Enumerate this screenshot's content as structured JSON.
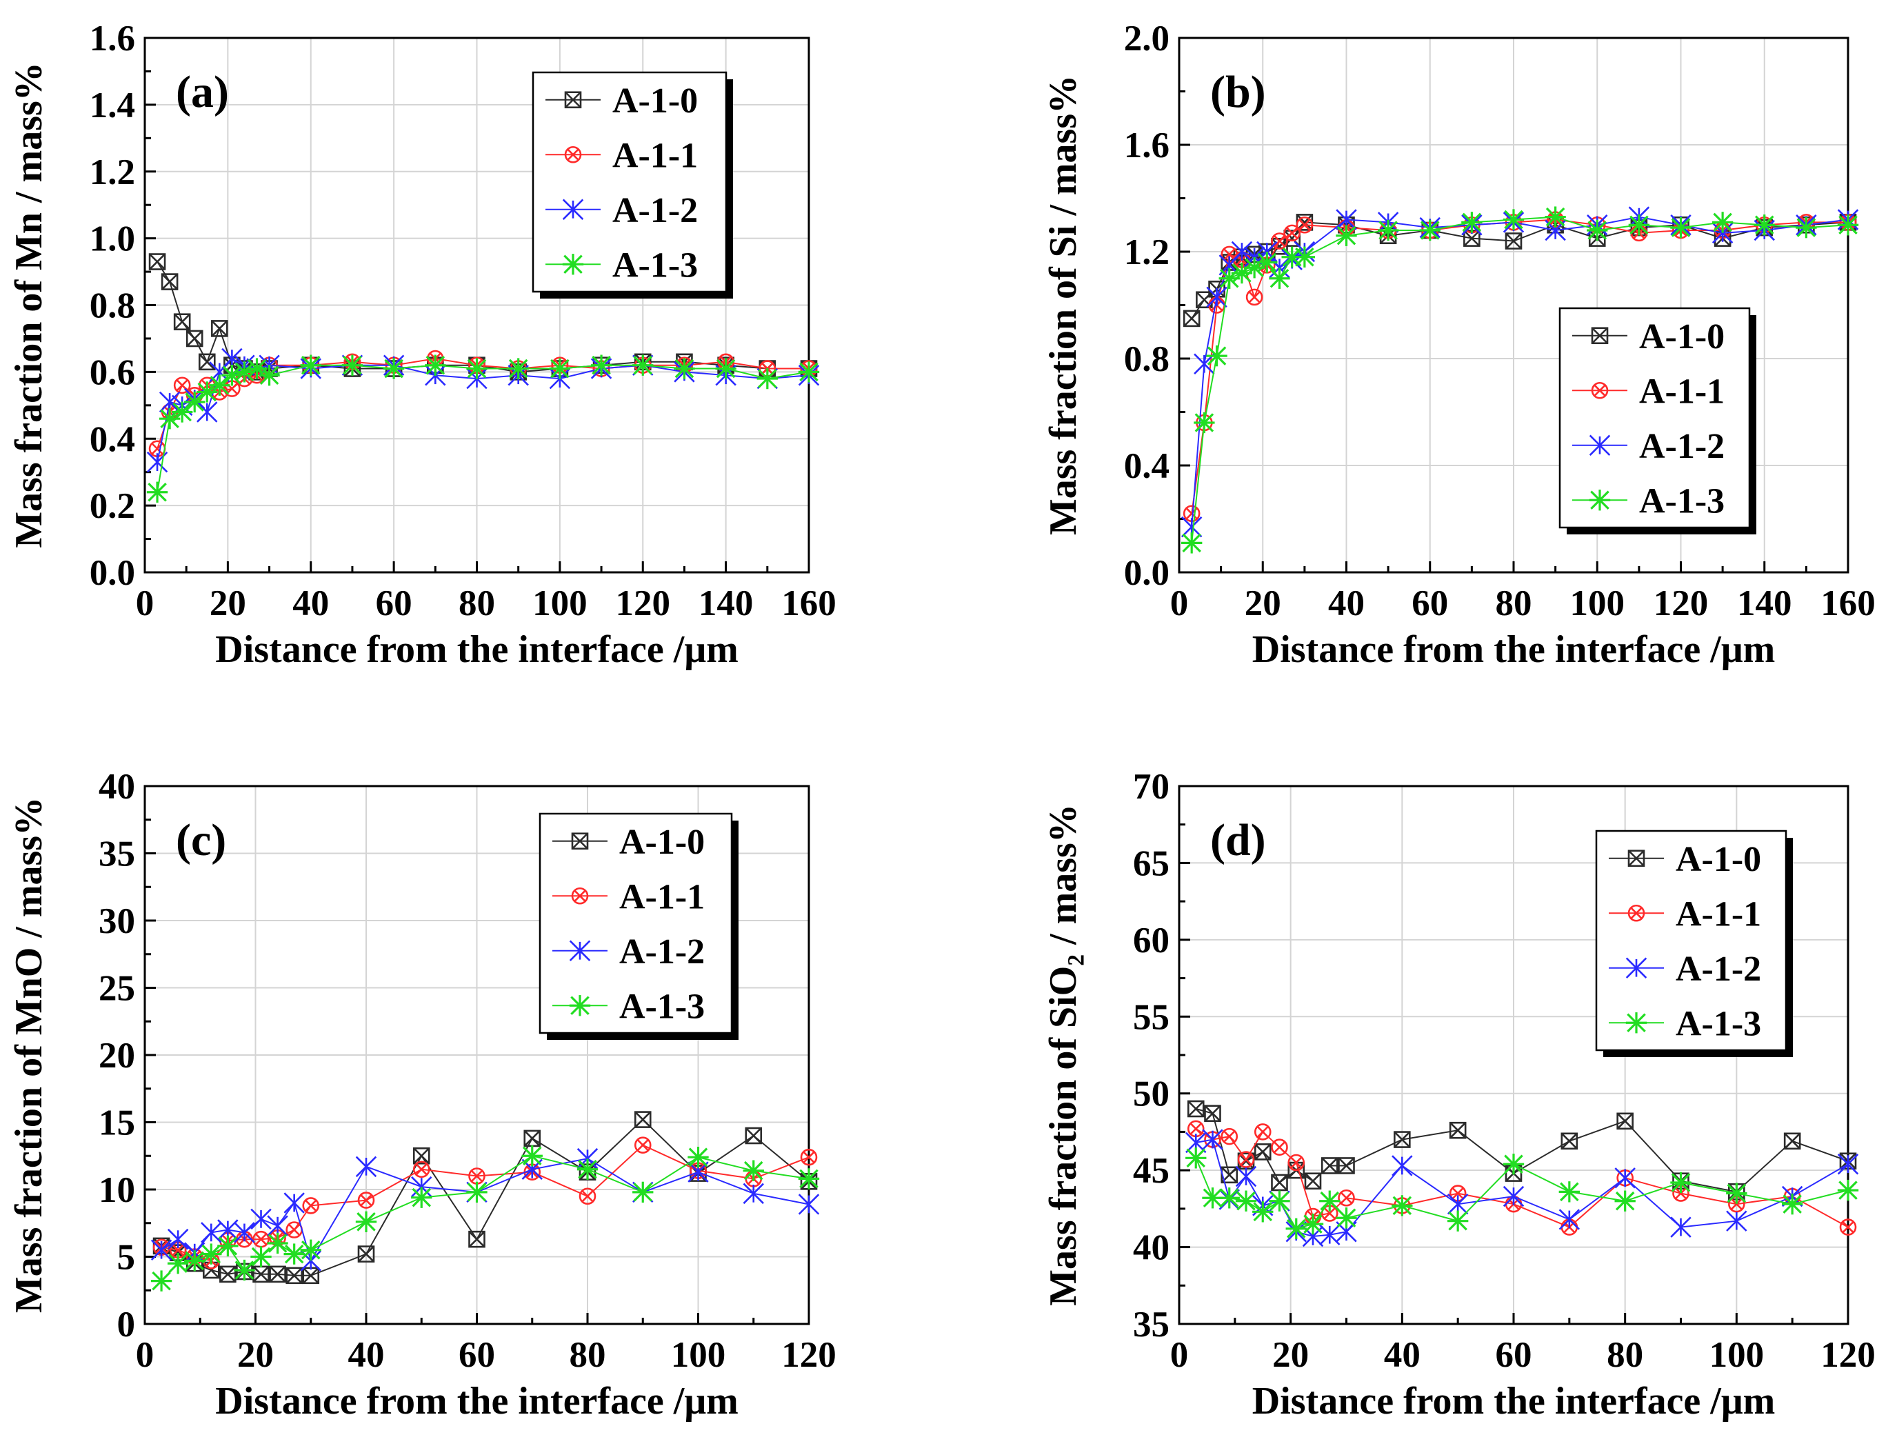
{
  "colors": {
    "A-1-0": "#2b2b2b",
    "A-1-1": "#ff2a2a",
    "A-1-2": "#2a2aff",
    "A-1-3": "#22dd22",
    "grid": "#d4d4d4",
    "axis": "#000000"
  },
  "chart_data": [
    {
      "type": "line",
      "panel_label": "(a)",
      "xlabel": "Distance from the interface /μm",
      "ylabel": "Mass fraction of Mn / mass%",
      "xlim": [
        0,
        160
      ],
      "ylim": [
        0,
        1.6
      ],
      "xticks": [
        0,
        20,
        40,
        60,
        80,
        100,
        120,
        140,
        160
      ],
      "yticks": [
        0.0,
        0.2,
        0.4,
        0.6,
        0.8,
        1.0,
        1.2,
        1.4,
        1.6
      ],
      "ytick_labels": [
        "0.0",
        "0.2",
        "0.4",
        "0.6",
        "0.8",
        "1.0",
        "1.2",
        "1.4",
        "1.6"
      ],
      "grid": true,
      "legend_position": "top-right",
      "series": [
        {
          "name": "A-1-0",
          "marker": "boxcross",
          "x": [
            3,
            6,
            9,
            12,
            15,
            18,
            21,
            24,
            27,
            30,
            40,
            50,
            60,
            70,
            80,
            90,
            100,
            110,
            120,
            130,
            140,
            150,
            160
          ],
          "y": [
            0.93,
            0.87,
            0.75,
            0.7,
            0.63,
            0.73,
            0.62,
            0.61,
            0.6,
            0.61,
            0.62,
            0.61,
            0.61,
            0.62,
            0.62,
            0.6,
            0.61,
            0.62,
            0.63,
            0.63,
            0.62,
            0.61,
            0.61
          ]
        },
        {
          "name": "A-1-1",
          "marker": "circlecross",
          "x": [
            3,
            6,
            9,
            12,
            15,
            18,
            21,
            24,
            27,
            30,
            40,
            50,
            60,
            70,
            80,
            90,
            100,
            110,
            120,
            130,
            140,
            150,
            160
          ],
          "y": [
            0.37,
            0.48,
            0.56,
            0.53,
            0.56,
            0.54,
            0.55,
            0.58,
            0.59,
            0.62,
            0.62,
            0.63,
            0.62,
            0.64,
            0.62,
            0.61,
            0.62,
            0.61,
            0.62,
            0.62,
            0.63,
            0.61,
            0.61
          ]
        },
        {
          "name": "A-1-2",
          "marker": "star",
          "x": [
            3,
            6,
            9,
            12,
            15,
            18,
            21,
            24,
            27,
            30,
            40,
            50,
            60,
            70,
            80,
            90,
            100,
            110,
            120,
            130,
            140,
            150,
            160
          ],
          "y": [
            0.33,
            0.51,
            0.5,
            0.52,
            0.48,
            0.6,
            0.64,
            0.62,
            0.61,
            0.62,
            0.61,
            0.62,
            0.62,
            0.59,
            0.58,
            0.59,
            0.58,
            0.61,
            0.62,
            0.6,
            0.59,
            0.58,
            0.59
          ]
        },
        {
          "name": "A-1-3",
          "marker": "asterisk",
          "x": [
            3,
            6,
            9,
            12,
            15,
            18,
            21,
            24,
            27,
            30,
            40,
            50,
            60,
            70,
            80,
            90,
            100,
            110,
            120,
            130,
            140,
            150,
            160
          ],
          "y": [
            0.24,
            0.46,
            0.48,
            0.51,
            0.54,
            0.56,
            0.59,
            0.6,
            0.61,
            0.59,
            0.62,
            0.62,
            0.61,
            0.62,
            0.61,
            0.61,
            0.61,
            0.62,
            0.62,
            0.61,
            0.61,
            0.58,
            0.6
          ]
        }
      ]
    },
    {
      "type": "line",
      "panel_label": "(b)",
      "xlabel": "Distance from the interface /μm",
      "ylabel": "Mass fraction of Si / mass%",
      "xlim": [
        0,
        160
      ],
      "ylim": [
        0,
        2.0
      ],
      "xticks": [
        0,
        20,
        40,
        60,
        80,
        100,
        120,
        140,
        160
      ],
      "yticks": [
        0.0,
        0.4,
        0.8,
        1.2,
        1.6,
        2.0
      ],
      "ytick_labels": [
        "0.0",
        "0.4",
        "0.8",
        "1.2",
        "1.6",
        "2.0"
      ],
      "grid": true,
      "legend_position": "center-right",
      "series": [
        {
          "name": "A-1-0",
          "marker": "boxcross",
          "x": [
            3,
            6,
            9,
            12,
            15,
            18,
            21,
            24,
            27,
            30,
            40,
            50,
            60,
            70,
            80,
            90,
            100,
            110,
            120,
            130,
            140,
            150,
            160
          ],
          "y": [
            0.95,
            1.02,
            1.06,
            1.16,
            1.18,
            1.19,
            1.2,
            1.22,
            1.25,
            1.31,
            1.3,
            1.26,
            1.28,
            1.25,
            1.24,
            1.3,
            1.25,
            1.29,
            1.3,
            1.25,
            1.29,
            1.3,
            1.31
          ]
        },
        {
          "name": "A-1-1",
          "marker": "circlecross",
          "x": [
            3,
            6,
            9,
            12,
            15,
            18,
            21,
            24,
            27,
            30,
            40,
            50,
            60,
            70,
            80,
            90,
            100,
            110,
            120,
            130,
            140,
            150,
            160
          ],
          "y": [
            0.22,
            0.56,
            1.0,
            1.19,
            1.17,
            1.03,
            1.15,
            1.24,
            1.27,
            1.3,
            1.29,
            1.28,
            1.28,
            1.3,
            1.31,
            1.32,
            1.3,
            1.27,
            1.28,
            1.28,
            1.3,
            1.31,
            1.31
          ]
        },
        {
          "name": "A-1-2",
          "marker": "star",
          "x": [
            3,
            6,
            9,
            12,
            15,
            18,
            21,
            24,
            27,
            30,
            40,
            50,
            60,
            70,
            80,
            90,
            100,
            110,
            120,
            130,
            140,
            150,
            160
          ],
          "y": [
            0.17,
            0.78,
            1.03,
            1.15,
            1.2,
            1.18,
            1.2,
            1.14,
            1.17,
            1.2,
            1.32,
            1.31,
            1.29,
            1.3,
            1.31,
            1.28,
            1.3,
            1.33,
            1.3,
            1.27,
            1.28,
            1.3,
            1.32
          ]
        },
        {
          "name": "A-1-3",
          "marker": "asterisk",
          "x": [
            3,
            6,
            9,
            12,
            15,
            18,
            21,
            24,
            27,
            30,
            40,
            50,
            60,
            70,
            80,
            90,
            100,
            110,
            120,
            130,
            140,
            150,
            160
          ],
          "y": [
            0.11,
            0.56,
            0.81,
            1.1,
            1.12,
            1.14,
            1.16,
            1.1,
            1.18,
            1.18,
            1.26,
            1.28,
            1.28,
            1.31,
            1.32,
            1.33,
            1.28,
            1.3,
            1.29,
            1.31,
            1.3,
            1.29,
            1.3
          ]
        }
      ]
    },
    {
      "type": "line",
      "panel_label": "(c)",
      "xlabel": "Distance from the interface /μm",
      "ylabel": "Mass fraction of MnO / mass%",
      "xlim": [
        0,
        120
      ],
      "ylim": [
        0,
        40
      ],
      "xticks": [
        0,
        20,
        40,
        60,
        80,
        100,
        120
      ],
      "yticks": [
        0,
        5,
        10,
        15,
        20,
        25,
        30,
        35,
        40
      ],
      "ytick_labels": [
        "0",
        "5",
        "10",
        "15",
        "20",
        "25",
        "30",
        "35",
        "40"
      ],
      "grid": true,
      "legend_position": "top-right",
      "series": [
        {
          "name": "A-1-0",
          "marker": "boxcross",
          "x": [
            3,
            6,
            9,
            12,
            15,
            18,
            21,
            24,
            27,
            30,
            40,
            50,
            60,
            70,
            80,
            90,
            100,
            110,
            120
          ],
          "y": [
            5.8,
            5.3,
            4.5,
            4.0,
            3.7,
            3.9,
            3.7,
            3.7,
            3.6,
            3.6,
            5.2,
            12.5,
            6.3,
            13.8,
            11.3,
            15.2,
            11.2,
            14.0,
            10.6
          ]
        },
        {
          "name": "A-1-1",
          "marker": "circlecross",
          "x": [
            3,
            6,
            9,
            12,
            15,
            18,
            21,
            24,
            27,
            30,
            40,
            50,
            60,
            70,
            80,
            90,
            100,
            110,
            120
          ],
          "y": [
            5.7,
            5.5,
            5.0,
            4.7,
            6.2,
            6.3,
            6.3,
            6.4,
            7.0,
            8.8,
            9.2,
            11.5,
            11.0,
            11.3,
            9.5,
            13.3,
            11.4,
            10.8,
            12.4
          ]
        },
        {
          "name": "A-1-2",
          "marker": "star",
          "x": [
            3,
            6,
            9,
            12,
            15,
            18,
            21,
            24,
            27,
            30,
            40,
            50,
            60,
            70,
            80,
            90,
            100,
            110,
            120
          ],
          "y": [
            5.5,
            6.3,
            5.3,
            6.8,
            7.0,
            6.8,
            7.8,
            7.3,
            9.0,
            4.7,
            11.7,
            10.2,
            9.8,
            11.5,
            12.3,
            9.8,
            11.3,
            9.7,
            8.9
          ]
        },
        {
          "name": "A-1-3",
          "marker": "asterisk",
          "x": [
            3,
            6,
            9,
            12,
            15,
            18,
            21,
            24,
            27,
            30,
            40,
            50,
            60,
            70,
            80,
            90,
            100,
            110,
            120
          ],
          "y": [
            3.2,
            4.5,
            4.7,
            5.2,
            5.8,
            4.0,
            5.0,
            6.0,
            5.2,
            5.5,
            7.6,
            9.4,
            9.8,
            12.5,
            11.5,
            9.8,
            12.4,
            11.4,
            10.8
          ]
        }
      ]
    },
    {
      "type": "line",
      "panel_label": "(d)",
      "xlabel": "Distance from the interface /μm",
      "ylabel": "Mass fraction of SiO₂ / mass%",
      "xlim": [
        0,
        120
      ],
      "ylim": [
        35,
        70
      ],
      "xticks": [
        0,
        20,
        40,
        60,
        80,
        100,
        120
      ],
      "yticks": [
        35,
        40,
        45,
        50,
        55,
        60,
        65,
        70
      ],
      "ytick_labels": [
        "35",
        "40",
        "45",
        "50",
        "55",
        "60",
        "65",
        "70"
      ],
      "grid": true,
      "legend_position": "top-right",
      "series": [
        {
          "name": "A-1-0",
          "marker": "boxcross",
          "x": [
            3,
            6,
            9,
            12,
            15,
            18,
            21,
            24,
            27,
            30,
            40,
            50,
            60,
            70,
            80,
            90,
            100,
            110,
            120
          ],
          "y": [
            49.0,
            48.7,
            44.7,
            45.6,
            46.2,
            44.2,
            45.0,
            44.3,
            45.3,
            45.3,
            47.0,
            47.6,
            44.8,
            46.9,
            48.2,
            44.3,
            43.6,
            46.9,
            45.6
          ]
        },
        {
          "name": "A-1-1",
          "marker": "circlecross",
          "x": [
            3,
            6,
            9,
            12,
            15,
            18,
            21,
            24,
            27,
            30,
            40,
            50,
            60,
            70,
            80,
            90,
            100,
            110,
            120
          ],
          "y": [
            47.7,
            47.0,
            47.2,
            45.7,
            47.5,
            46.5,
            45.5,
            42.0,
            42.2,
            43.2,
            42.7,
            43.5,
            42.8,
            41.3,
            44.5,
            43.5,
            42.8,
            43.3,
            41.3
          ]
        },
        {
          "name": "A-1-2",
          "marker": "star",
          "x": [
            3,
            6,
            9,
            12,
            15,
            18,
            21,
            24,
            27,
            30,
            40,
            50,
            60,
            70,
            80,
            90,
            100,
            110,
            120
          ],
          "y": [
            46.8,
            47.0,
            43.1,
            44.6,
            42.7,
            43.0,
            41.0,
            40.7,
            40.8,
            41.0,
            45.3,
            42.8,
            43.3,
            41.8,
            44.5,
            41.3,
            41.7,
            43.3,
            45.4
          ]
        },
        {
          "name": "A-1-3",
          "marker": "asterisk",
          "x": [
            3,
            6,
            9,
            12,
            15,
            18,
            21,
            24,
            27,
            30,
            40,
            50,
            60,
            70,
            80,
            90,
            100,
            110,
            120
          ],
          "y": [
            45.8,
            43.2,
            43.2,
            43.0,
            42.3,
            43.0,
            41.2,
            41.5,
            43.0,
            41.9,
            42.7,
            41.7,
            45.4,
            43.6,
            43.0,
            44.2,
            43.5,
            42.8,
            43.7
          ]
        }
      ]
    }
  ]
}
